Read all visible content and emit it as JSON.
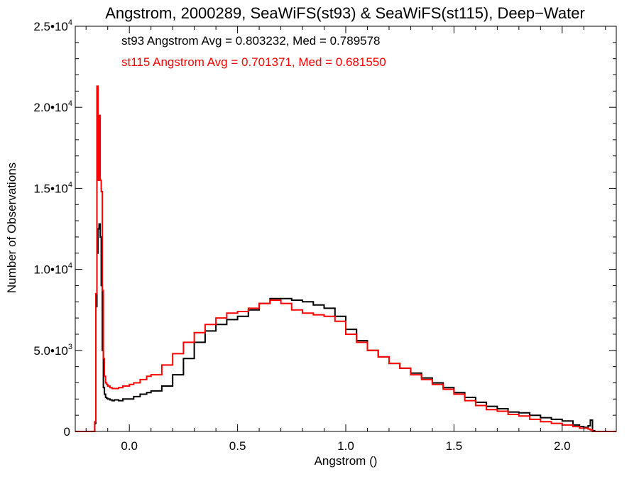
{
  "chart_data": {
    "type": "line",
    "title": "Angstrom, 2000289, SeaWiFS(st93) & SeaWiFS(st115), Deep−Water",
    "xlabel": "Angstrom ()",
    "ylabel": "Number of Observations",
    "xlim": [
      -0.25,
      2.25
    ],
    "ylim": [
      0,
      25000
    ],
    "grid": false,
    "x_ticks": [
      {
        "value": 0.0,
        "label": "0.0"
      },
      {
        "value": 0.5,
        "label": "0.5"
      },
      {
        "value": 1.0,
        "label": "1.0"
      },
      {
        "value": 1.5,
        "label": "1.5"
      },
      {
        "value": 2.0,
        "label": "2.0"
      }
    ],
    "y_ticks": [
      {
        "value": 0,
        "mant": "0",
        "exp": ""
      },
      {
        "value": 5000,
        "mant": "5.0•10",
        "exp": "3"
      },
      {
        "value": 10000,
        "mant": "1.0•10",
        "exp": "4"
      },
      {
        "value": 15000,
        "mant": "1.5•10",
        "exp": "4"
      },
      {
        "value": 20000,
        "mant": "2.0•10",
        "exp": "4"
      },
      {
        "value": 25000,
        "mant": "2.5•10",
        "exp": "4"
      }
    ],
    "annotations": [
      {
        "text": "st93 Angstrom Avg = 0.803232, Med = 0.789578",
        "color": "#000000"
      },
      {
        "text": "st115 Angstrom Avg = 0.701371, Med = 0.681550",
        "color": "#ff0000"
      }
    ],
    "series": [
      {
        "color": "#000000",
        "x": [
          -0.25,
          -0.18,
          -0.165,
          -0.16,
          -0.155,
          -0.15,
          -0.145,
          -0.14,
          -0.135,
          -0.13,
          -0.125,
          -0.12,
          -0.115,
          -0.11,
          -0.105,
          -0.1,
          -0.09,
          -0.08,
          -0.07,
          -0.05,
          -0.03,
          0.0,
          0.02,
          0.05,
          0.08,
          0.1,
          0.15,
          0.2,
          0.25,
          0.3,
          0.35,
          0.4,
          0.45,
          0.5,
          0.55,
          0.6,
          0.65,
          0.7,
          0.75,
          0.8,
          0.85,
          0.9,
          0.95,
          1.0,
          1.05,
          1.1,
          1.15,
          1.2,
          1.25,
          1.3,
          1.35,
          1.4,
          1.45,
          1.5,
          1.55,
          1.6,
          1.65,
          1.7,
          1.75,
          1.8,
          1.85,
          1.9,
          1.95,
          2.0,
          2.05,
          2.08,
          2.1,
          2.12,
          2.13,
          2.14,
          2.15,
          2.2,
          2.25
        ],
        "values": [
          0,
          0,
          0,
          500,
          7700,
          11000,
          12500,
          12800,
          12000,
          9000,
          5000,
          2700,
          2300,
          2100,
          2050,
          2000,
          1950,
          1900,
          1950,
          1900,
          2000,
          2000,
          2150,
          2300,
          2400,
          2500,
          2800,
          3500,
          4500,
          5500,
          6200,
          6600,
          6900,
          7100,
          7500,
          7900,
          8200,
          8200,
          8100,
          8000,
          7800,
          7600,
          7100,
          6300,
          5600,
          5000,
          4600,
          4200,
          3900,
          3600,
          3300,
          3000,
          2700,
          2400,
          2100,
          1800,
          1550,
          1400,
          1200,
          1150,
          1000,
          850,
          750,
          650,
          400,
          300,
          250,
          350,
          700,
          50,
          0,
          0,
          0
        ]
      },
      {
        "color": "#ff0000",
        "x": [
          -0.25,
          -0.18,
          -0.165,
          -0.16,
          -0.155,
          -0.15,
          -0.145,
          -0.14,
          -0.135,
          -0.13,
          -0.125,
          -0.12,
          -0.115,
          -0.11,
          -0.105,
          -0.1,
          -0.09,
          -0.08,
          -0.07,
          -0.05,
          -0.03,
          0.0,
          0.02,
          0.05,
          0.08,
          0.1,
          0.15,
          0.2,
          0.25,
          0.3,
          0.35,
          0.4,
          0.45,
          0.5,
          0.55,
          0.6,
          0.65,
          0.7,
          0.75,
          0.8,
          0.85,
          0.9,
          0.95,
          1.0,
          1.05,
          1.1,
          1.15,
          1.2,
          1.25,
          1.3,
          1.35,
          1.4,
          1.45,
          1.5,
          1.55,
          1.6,
          1.65,
          1.7,
          1.75,
          1.8,
          1.85,
          1.9,
          1.95,
          2.0,
          2.05,
          2.08,
          2.1,
          2.12,
          2.13,
          2.14,
          2.15,
          2.2,
          2.25
        ],
        "values": [
          0,
          0,
          0,
          600,
          8500,
          21300,
          15500,
          19500,
          15500,
          14800,
          8700,
          4500,
          3400,
          3000,
          2900,
          2800,
          2700,
          2650,
          2650,
          2700,
          2800,
          2900,
          3000,
          3200,
          3400,
          3500,
          4100,
          4800,
          5500,
          6100,
          6600,
          7000,
          7300,
          7400,
          7600,
          7900,
          8100,
          7900,
          7500,
          7300,
          7200,
          7100,
          6800,
          6000,
          5500,
          5000,
          4600,
          4200,
          3900,
          3500,
          3200,
          2900,
          2600,
          2300,
          1900,
          1600,
          1350,
          1250,
          1050,
          950,
          750,
          600,
          500,
          400,
          300,
          200,
          200,
          150,
          100,
          0,
          0,
          0,
          0
        ]
      }
    ]
  }
}
